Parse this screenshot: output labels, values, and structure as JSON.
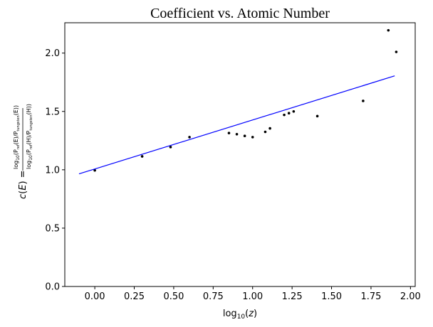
{
  "chart_data": {
    "type": "scatter",
    "title": "Coefficient vs. Atomic Number",
    "xlabel": "log10(z)",
    "ylabel": "c(E) = log10(P_ref(E)/P_tungsten(E)) / log10(P_ref(H)/P_tungsten(H))",
    "xlim": [
      -0.19,
      2.03
    ],
    "ylim": [
      0.0,
      2.26
    ],
    "xticks": [
      0.0,
      0.25,
      0.5,
      0.75,
      1.0,
      1.25,
      1.5,
      1.75,
      2.0
    ],
    "xtick_labels": [
      "0.00",
      "0.25",
      "0.50",
      "0.75",
      "1.00",
      "1.25",
      "1.50",
      "1.75",
      "2.00"
    ],
    "yticks": [
      0.0,
      0.5,
      1.0,
      1.5,
      2.0
    ],
    "ytick_labels": [
      "0.0",
      "0.5",
      "1.0",
      "1.5",
      "2.0"
    ],
    "grid": false,
    "legend": "none",
    "series": [
      {
        "kind": "scatter",
        "color": "#000000",
        "points": [
          [
            0.0,
            0.995
          ],
          [
            0.3,
            1.115
          ],
          [
            0.48,
            1.195
          ],
          [
            0.6,
            1.28
          ],
          [
            0.85,
            1.315
          ],
          [
            0.9,
            1.305
          ],
          [
            0.95,
            1.29
          ],
          [
            1.0,
            1.28
          ],
          [
            1.08,
            1.325
          ],
          [
            1.11,
            1.355
          ],
          [
            1.2,
            1.47
          ],
          [
            1.23,
            1.485
          ],
          [
            1.26,
            1.5
          ],
          [
            1.41,
            1.46
          ],
          [
            1.7,
            1.59
          ],
          [
            1.86,
            2.195
          ],
          [
            1.91,
            2.01
          ]
        ]
      },
      {
        "kind": "line",
        "color": "#0000ff",
        "points": [
          [
            -0.1,
            0.965
          ],
          [
            1.9,
            1.805
          ]
        ]
      }
    ]
  }
}
